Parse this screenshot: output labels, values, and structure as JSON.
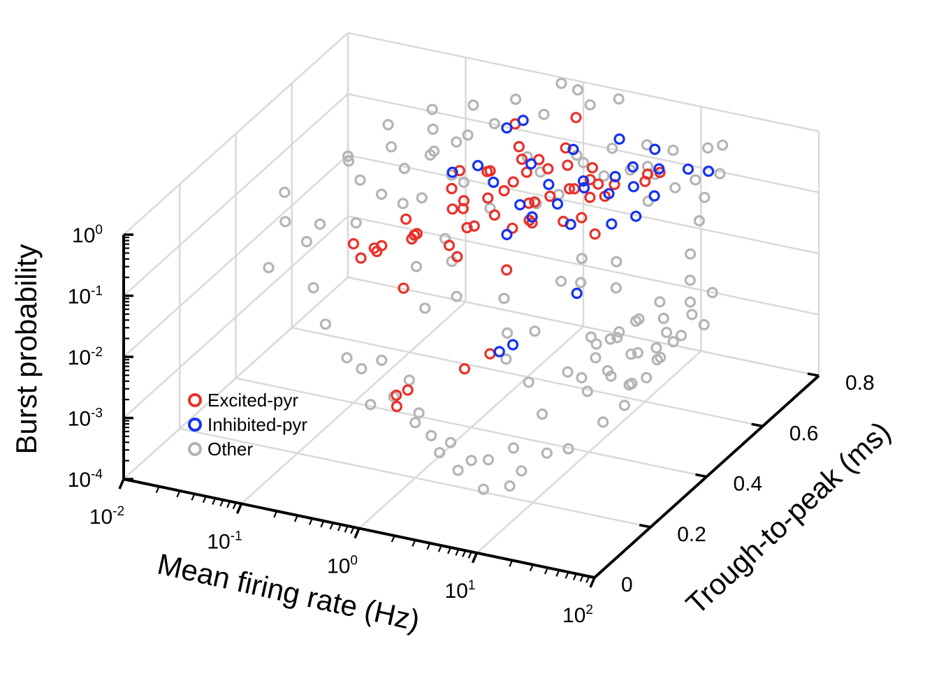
{
  "chart_data": {
    "type": "scatter",
    "projection": "3d",
    "xlabel": "Mean firing rate (Hz)",
    "ylabel": "Trough-to-peak (ms)",
    "zlabel": "Burst probability",
    "xscale": "log",
    "zscale": "log",
    "xlim": [
      0.01,
      100
    ],
    "ylim": [
      0,
      0.8
    ],
    "zlim": [
      0.0001,
      1
    ],
    "x_ticks": [
      {
        "base": "10",
        "exp": "-2"
      },
      {
        "base": "10",
        "exp": "-1"
      },
      {
        "base": "10",
        "exp": "0"
      },
      {
        "base": "10",
        "exp": "1"
      },
      {
        "base": "10",
        "exp": "2"
      }
    ],
    "y_ticks": [
      "0",
      "0.2",
      "0.4",
      "0.6",
      "0.8"
    ],
    "z_ticks": [
      {
        "base": "10",
        "exp": "0"
      },
      {
        "base": "10",
        "exp": "-1"
      },
      {
        "base": "10",
        "exp": "-2"
      },
      {
        "base": "10",
        "exp": "-3"
      },
      {
        "base": "10",
        "exp": "-4"
      }
    ],
    "grid": true,
    "legend_position": "bottom-left",
    "series": [
      {
        "name": "Excited-pyr",
        "color": "#e8312a",
        "points": [
          [
            1.0,
            0.55,
            0.25
          ],
          [
            1.5,
            0.6,
            0.3
          ],
          [
            0.8,
            0.5,
            0.2
          ],
          [
            2.0,
            0.5,
            0.25
          ],
          [
            3.0,
            0.55,
            0.3
          ],
          [
            1.2,
            0.45,
            0.2
          ],
          [
            0.6,
            0.55,
            0.3
          ],
          [
            0.5,
            0.5,
            0.15
          ],
          [
            4.0,
            0.6,
            0.25
          ],
          [
            2.5,
            0.45,
            0.2
          ],
          [
            1.8,
            0.5,
            0.12
          ],
          [
            0.9,
            0.6,
            0.35
          ],
          [
            3.5,
            0.5,
            0.15
          ],
          [
            6.0,
            0.55,
            0.3
          ],
          [
            0.7,
            0.45,
            0.1
          ],
          [
            1.3,
            0.55,
            0.4
          ],
          [
            2.2,
            0.6,
            0.4
          ],
          [
            5.0,
            0.5,
            0.2
          ],
          [
            0.4,
            0.5,
            0.1
          ],
          [
            0.3,
            0.55,
            0.12
          ],
          [
            1.1,
            0.5,
            0.3
          ],
          [
            1.6,
            0.52,
            0.18
          ],
          [
            2.8,
            0.58,
            0.22
          ],
          [
            0.55,
            0.48,
            0.14
          ],
          [
            3.2,
            0.62,
            0.35
          ],
          [
            0.25,
            0.45,
            0.05
          ],
          [
            0.2,
            0.5,
            0.03
          ],
          [
            0.15,
            0.4,
            0.04
          ],
          [
            0.35,
            0.35,
            0.02
          ],
          [
            0.12,
            0.45,
            0.02
          ],
          [
            0.6,
            0.65,
            0.7
          ],
          [
            1.5,
            0.7,
            0.8
          ],
          [
            8.0,
            0.65,
            0.3
          ],
          [
            0.3,
            0.3,
            0.15
          ],
          [
            1.0,
            0.35,
            0.1
          ],
          [
            2.0,
            0.4,
            0.05
          ],
          [
            0.5,
            0.3,
            0.0008
          ],
          [
            0.4,
            0.3,
            0.0006
          ],
          [
            0.45,
            0.28,
            0.0005
          ],
          [
            2.0,
            0.25,
            0.005
          ],
          [
            2.5,
            0.3,
            0.006
          ],
          [
            0.2,
            0.3,
            0.08
          ],
          [
            10.0,
            0.6,
            0.4
          ],
          [
            0.1,
            0.4,
            0.04
          ],
          [
            1.4,
            0.58,
            0.5
          ],
          [
            0.75,
            0.52,
            0.45
          ],
          [
            4.5,
            0.55,
            0.5
          ],
          [
            0.35,
            0.55,
            0.25
          ],
          [
            1.9,
            0.62,
            0.6
          ],
          [
            2.7,
            0.5,
            0.35
          ],
          [
            0.65,
            0.4,
            0.08
          ],
          [
            0.85,
            0.6,
            0.55
          ],
          [
            12.0,
            0.62,
            0.5
          ],
          [
            6.5,
            0.5,
            0.12
          ],
          [
            0.28,
            0.42,
            0.06
          ],
          [
            0.18,
            0.48,
            0.06
          ],
          [
            1.7,
            0.45,
            0.14
          ],
          [
            3.8,
            0.58,
            0.18
          ],
          [
            0.95,
            0.42,
            0.16
          ],
          [
            5.5,
            0.6,
            0.28
          ]
        ]
      },
      {
        "name": "Inhibited-pyr",
        "color": "#1432f0",
        "points": [
          [
            2.0,
            0.55,
            0.3
          ],
          [
            3.0,
            0.6,
            0.25
          ],
          [
            1.5,
            0.5,
            0.2
          ],
          [
            4.0,
            0.55,
            0.35
          ],
          [
            5.0,
            0.62,
            0.3
          ],
          [
            2.5,
            0.45,
            0.25
          ],
          [
            6.0,
            0.65,
            0.35
          ],
          [
            8.0,
            0.6,
            0.3
          ],
          [
            10.0,
            0.65,
            0.4
          ],
          [
            1.2,
            0.58,
            0.4
          ],
          [
            0.8,
            0.52,
            0.3
          ],
          [
            0.5,
            0.55,
            0.35
          ],
          [
            0.4,
            0.5,
            0.4
          ],
          [
            3.5,
            0.7,
            0.5
          ],
          [
            7.0,
            0.7,
            0.45
          ],
          [
            12.0,
            0.6,
            0.25
          ],
          [
            15.0,
            0.68,
            0.35
          ],
          [
            20.0,
            0.7,
            0.3
          ],
          [
            2.2,
            0.62,
            0.6
          ],
          [
            1.8,
            0.42,
            0.15
          ],
          [
            0.6,
            0.62,
            0.8
          ],
          [
            0.7,
            0.65,
            0.85
          ],
          [
            6.0,
            0.45,
            0.02
          ],
          [
            3.0,
            0.3,
            0.007
          ],
          [
            3.5,
            0.32,
            0.008
          ],
          [
            9.0,
            0.5,
            0.2
          ],
          [
            4.5,
            0.48,
            0.18
          ],
          [
            2.8,
            0.52,
            0.22
          ],
          [
            11.0,
            0.55,
            0.18
          ],
          [
            5.5,
            0.58,
            0.24
          ]
        ]
      },
      {
        "name": "Other",
        "color": "#b4b4b4",
        "points": [
          [
            0.5,
            0.5,
            0.3
          ],
          [
            1.0,
            0.6,
            0.4
          ],
          [
            0.3,
            0.55,
            0.2
          ],
          [
            2.0,
            0.65,
            0.35
          ],
          [
            0.2,
            0.45,
            0.15
          ],
          [
            0.1,
            0.5,
            0.1
          ],
          [
            0.05,
            0.55,
            0.08
          ],
          [
            0.08,
            0.45,
            0.05
          ],
          [
            0.15,
            0.6,
            0.2
          ],
          [
            0.03,
            0.5,
            0.02
          ],
          [
            0.04,
            0.4,
            0.03
          ],
          [
            0.06,
            0.35,
            0.01
          ],
          [
            0.1,
            0.3,
            0.005
          ],
          [
            0.2,
            0.25,
            0.003
          ],
          [
            0.3,
            0.3,
            0.002
          ],
          [
            0.5,
            0.25,
            0.001
          ],
          [
            1.0,
            0.2,
            0.0008
          ],
          [
            2.0,
            0.2,
            0.0005
          ],
          [
            3.0,
            0.2,
            0.0003
          ],
          [
            5.0,
            0.15,
            0.0002
          ],
          [
            8.0,
            0.2,
            0.0003
          ],
          [
            10.0,
            0.25,
            0.0004
          ],
          [
            20.0,
            0.2,
            0.001
          ],
          [
            30.0,
            0.25,
            0.002
          ],
          [
            15.0,
            0.3,
            0.005
          ],
          [
            12.0,
            0.2,
            0.003
          ],
          [
            25.0,
            0.3,
            0.008
          ],
          [
            30.0,
            0.35,
            0.01
          ],
          [
            40.0,
            0.3,
            0.006
          ],
          [
            50.0,
            0.35,
            0.01
          ],
          [
            20.0,
            0.35,
            0.015
          ],
          [
            25.0,
            0.4,
            0.02
          ],
          [
            30.0,
            0.3,
            0.03
          ],
          [
            35.0,
            0.35,
            0.04
          ],
          [
            40.0,
            0.4,
            0.05
          ],
          [
            20.0,
            0.3,
            0.02
          ],
          [
            15.0,
            0.25,
            0.01
          ],
          [
            18.0,
            0.3,
            0.025
          ],
          [
            22.0,
            0.28,
            0.015
          ],
          [
            28.0,
            0.32,
            0.03
          ],
          [
            45.0,
            0.3,
            0.02
          ],
          [
            60.0,
            0.35,
            0.03
          ],
          [
            50.0,
            0.25,
            0.01
          ],
          [
            70.0,
            0.3,
            0.02
          ],
          [
            80.0,
            0.35,
            0.03
          ],
          [
            60.0,
            0.2,
            0.008
          ],
          [
            70.0,
            0.25,
            0.015
          ],
          [
            90.0,
            0.3,
            0.04
          ],
          [
            35.0,
            0.25,
            0.012
          ],
          [
            26.0,
            0.22,
            0.008
          ],
          [
            3.0,
            0.6,
            0.5
          ],
          [
            4.0,
            0.65,
            0.6
          ],
          [
            6.0,
            0.7,
            0.5
          ],
          [
            8.0,
            0.65,
            0.4
          ],
          [
            10.0,
            0.7,
            0.5
          ],
          [
            15.0,
            0.75,
            0.4
          ],
          [
            20.0,
            0.75,
            0.5
          ],
          [
            25.0,
            0.7,
            0.3
          ],
          [
            0.8,
            0.7,
            0.7
          ],
          [
            1.5,
            0.75,
            0.8
          ],
          [
            0.4,
            0.65,
            0.6
          ],
          [
            0.25,
            0.6,
            0.4
          ],
          [
            0.12,
            0.65,
            0.3
          ],
          [
            0.07,
            0.6,
            0.2
          ],
          [
            0.04,
            0.55,
            0.15
          ],
          [
            0.6,
            0.4,
            0.1
          ],
          [
            0.9,
            0.35,
            0.08
          ],
          [
            1.3,
            0.3,
            0.04
          ],
          [
            0.45,
            0.35,
            0.05
          ],
          [
            0.7,
            0.3,
            0.02
          ],
          [
            2.5,
            0.35,
            0.03
          ],
          [
            3.5,
            0.3,
            0.015
          ],
          [
            4.5,
            0.25,
            0.01
          ],
          [
            6.0,
            0.3,
            0.02
          ],
          [
            7.0,
            0.25,
            0.005
          ],
          [
            0.35,
            0.2,
            0.004
          ],
          [
            0.55,
            0.15,
            0.002
          ],
          [
            0.8,
            0.22,
            0.003
          ],
          [
            1.2,
            0.18,
            0.0015
          ],
          [
            1.8,
            0.15,
            0.001
          ],
          [
            2.5,
            0.12,
            0.0008
          ],
          [
            4.0,
            0.1,
            0.0006
          ],
          [
            6.5,
            0.12,
            0.0009
          ],
          [
            9.0,
            0.15,
            0.0012
          ],
          [
            11.0,
            0.1,
            0.0005
          ],
          [
            0.02,
            0.45,
            0.03
          ],
          [
            0.025,
            0.35,
            0.015
          ],
          [
            0.015,
            0.5,
            0.05
          ],
          [
            0.03,
            0.6,
            0.1
          ],
          [
            0.05,
            0.65,
            0.25
          ],
          [
            0.09,
            0.7,
            0.35
          ],
          [
            0.14,
            0.52,
            0.25
          ],
          [
            0.18,
            0.58,
            0.3
          ],
          [
            0.22,
            0.5,
            0.12
          ],
          [
            0.28,
            0.62,
            0.45
          ],
          [
            1.1,
            0.45,
            0.25
          ],
          [
            1.7,
            0.55,
            0.45
          ],
          [
            2.3,
            0.48,
            0.3
          ],
          [
            3.2,
            0.5,
            0.4
          ],
          [
            5.0,
            0.58,
            0.45
          ],
          [
            7.5,
            0.6,
            0.55
          ],
          [
            11.0,
            0.62,
            0.45
          ],
          [
            14.0,
            0.55,
            0.35
          ],
          [
            18.0,
            0.6,
            0.4
          ],
          [
            24.0,
            0.62,
            0.5
          ],
          [
            32.0,
            0.6,
            0.35
          ],
          [
            38.0,
            0.55,
            0.25
          ],
          [
            42.0,
            0.5,
            0.12
          ],
          [
            55.0,
            0.45,
            0.08
          ],
          [
            65.0,
            0.42,
            0.05
          ],
          [
            75.0,
            0.4,
            0.04
          ],
          [
            85.0,
            0.45,
            0.06
          ],
          [
            95.0,
            0.4,
            0.03
          ],
          [
            48.0,
            0.38,
            0.035
          ],
          [
            58.0,
            0.32,
            0.022
          ],
          [
            0.65,
            0.8,
            0.8
          ],
          [
            1.0,
            0.78,
            0.9
          ],
          [
            2.0,
            0.8,
            0.7
          ],
          [
            0.35,
            0.75,
            0.55
          ],
          [
            0.18,
            0.72,
            0.45
          ],
          [
            17.0,
            0.4,
            0.06
          ],
          [
            13.0,
            0.45,
            0.09
          ],
          [
            9.5,
            0.38,
            0.07
          ],
          [
            7.8,
            0.42,
            0.11
          ],
          [
            5.8,
            0.4,
            0.05
          ]
        ]
      }
    ]
  }
}
